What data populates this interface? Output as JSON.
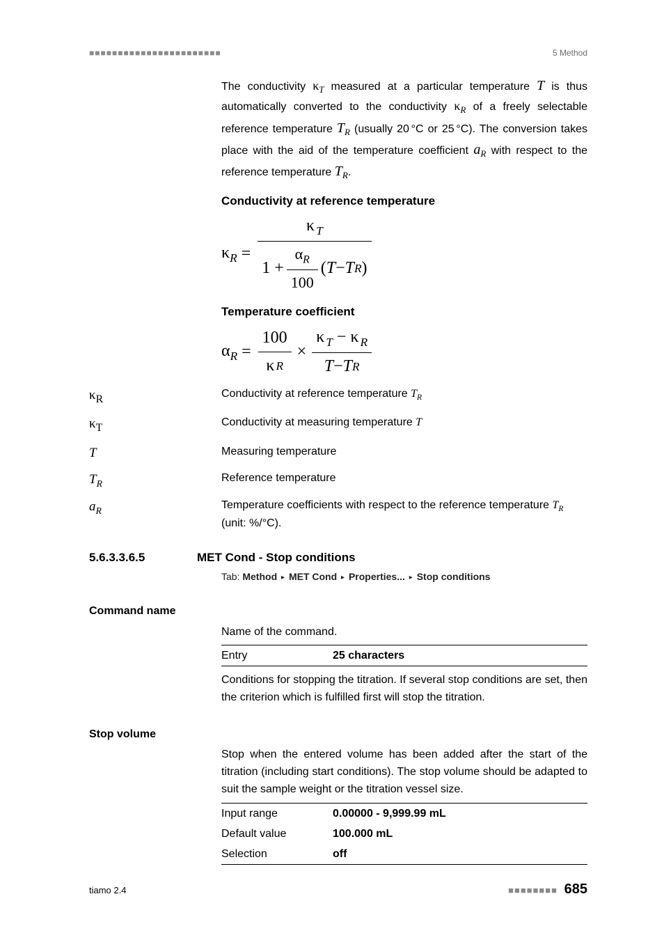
{
  "header": {
    "dashes": "■■■■■■■■■■■■■■■■■■■■■■■",
    "section_label": "5 Method"
  },
  "intro": {
    "p1a": "The conductivity ",
    "p1b": " measured at a particular temperature ",
    "p1c": " is thus automatically converted to the conductivity ",
    "p1d": " of a freely selectable reference temperature ",
    "p1e": " (usually 20 °C or 25 °C). The conversion takes place with the aid of the temperature coefficient ",
    "p1f": " with respect to the reference temperature ",
    "p1g": "."
  },
  "eq1_title": "Conductivity at reference temperature",
  "eq2_title": "Temperature coefficient",
  "definitions": [
    {
      "sym_html": "κ<sub>R</sub>",
      "txt_html": "Conductivity at reference temperature <span class='sym'>T</span><span class='sub rm'>R</span>"
    },
    {
      "sym_html": "κ<sub>T</sub>",
      "txt_html": "Conductivity at measuring temperature <span class='sym'>T</span>"
    },
    {
      "sym_html": "<span class='sym'>T</span>",
      "txt_html": "Measuring temperature"
    },
    {
      "sym_html": "<span class='sym'>T</span><span class='sub rm'>R</span>",
      "txt_html": "Reference temperature"
    },
    {
      "sym_html": "<span class='sym'>a</span><span class='sub rm'>R</span>",
      "txt_html": "Temperature coefficients with respect to the reference temperature <span class='sym'>T</span><span class='sub rm'>R</span> (unit: %/°C)."
    }
  ],
  "section": {
    "num": "5.6.3.3.6.5",
    "title": "MET Cond - Stop conditions",
    "tab_prefix": "Tab: ",
    "tab_path": [
      "Method",
      "MET Cond",
      "Properties...",
      "Stop conditions"
    ]
  },
  "params": {
    "command_name": {
      "label": "Command name",
      "desc1": "Name of the command.",
      "table": [
        [
          "Entry",
          "25 characters"
        ]
      ],
      "desc2": "Conditions for stopping the titration. If several stop conditions are set, then the criterion which is fulfilled first will stop the titration."
    },
    "stop_volume": {
      "label": "Stop volume",
      "desc": "Stop when the entered volume has been added after the start of the titration (including start conditions). The stop volume should be adapted to suit the sample weight or the titration vessel size.",
      "table": [
        [
          "Input range",
          "0.00000 - 9,999.99 mL"
        ],
        [
          "Default value",
          "100.000 mL"
        ],
        [
          "Selection",
          "off"
        ]
      ]
    }
  },
  "footer": {
    "product": "tiamo 2.4",
    "dashes": "■■■■■■■■",
    "page": "685"
  },
  "colors": {
    "text": "#000000",
    "muted": "#6c6c6c",
    "dash": "#8a8a8a",
    "background": "#ffffff"
  }
}
